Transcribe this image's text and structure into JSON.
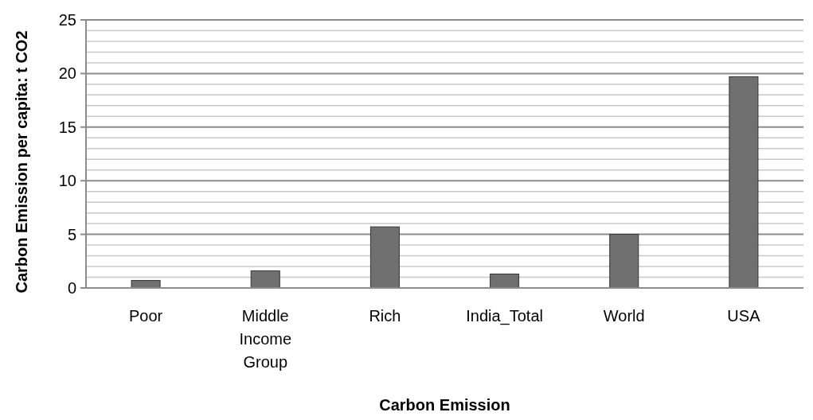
{
  "chart_data": {
    "type": "bar",
    "xlabel": "Carbon Emission",
    "ylabel": "Carbon Emission per capita: t CO2",
    "categories": [
      "Poor",
      "Middle Income Group",
      "Rich",
      "India_Total",
      "World",
      "USA"
    ],
    "values": [
      0.7,
      1.6,
      5.7,
      1.3,
      5.0,
      19.7
    ],
    "color": "#707070",
    "ylim": [
      0,
      25
    ],
    "yticks": [
      0,
      {
        "value": 1,
        "label": null
      },
      {
        "value": 2,
        "label": null
      },
      {
        "value": 3,
        "label": null
      },
      {
        "value": 4,
        "label": null
      },
      5,
      {
        "value": 6,
        "label": null
      },
      {
        "value": 7,
        "label": null
      },
      {
        "value": 8,
        "label": null
      },
      {
        "value": 9,
        "label": null
      },
      10,
      {
        "value": 11,
        "label": null
      },
      {
        "value": 12,
        "label": null
      },
      {
        "value": 13,
        "label": null
      },
      {
        "value": 14,
        "label": null
      },
      15,
      {
        "value": 16,
        "label": null
      },
      {
        "value": 17,
        "label": null
      },
      {
        "value": 18,
        "label": null
      },
      {
        "value": 19,
        "label": null
      },
      20,
      {
        "value": 21,
        "label": null
      },
      {
        "value": 22,
        "label": null
      },
      {
        "value": 23,
        "label": null
      },
      {
        "value": 24,
        "label": null
      },
      25
    ],
    "grid": true
  }
}
